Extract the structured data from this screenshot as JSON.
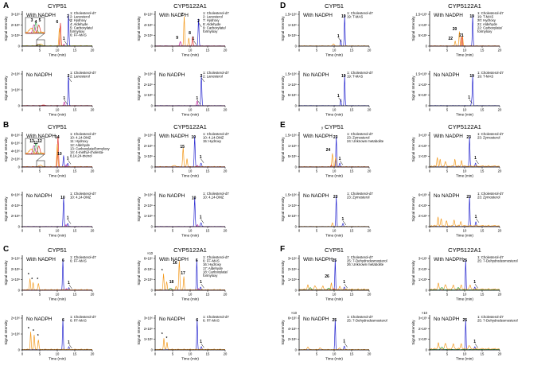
{
  "colors": {
    "blue": "#2a2ad0",
    "orange": "#f39a1e",
    "red": "#e0312d",
    "magenta": "#c0219a",
    "green": "#2fa84a",
    "gray": "#7a7a7a"
  },
  "labels": {
    "with": "With NADPH",
    "no": "No NADPH",
    "ylab": "Signal Intensity",
    "xlab": "Time (min)",
    "x_ticks": [
      "0",
      "5",
      "10",
      "15",
      "20"
    ],
    "x_ticks_d": [
      "0",
      "5",
      "10",
      "15",
      "20"
    ]
  },
  "panel_letters": [
    "A",
    "B",
    "C",
    "D",
    "E",
    "F"
  ],
  "titles": {
    "cyp51": "CYP51",
    "cyp5122": "CYP5122A1"
  },
  "stray": {
    "e_y": "y"
  },
  "subplots": [
    {
      "id": "A-cyp51-with",
      "panel": "A",
      "enzyme": "cyp51",
      "cond": "with",
      "yticks": [
        "0",
        "1×10⁶",
        "2×10⁶",
        "3×10⁶"
      ],
      "legend": [
        "1: Cholesterol-d7",
        "2: Lanosterol",
        "3: Hydroxy",
        "4: Aldehyde",
        "5: Carboxylate/",
        "    formyloxy",
        "6: FF-MAS"
      ],
      "peaks": [
        "1",
        "2",
        "6"
      ],
      "inset": {
        "peaks": [
          "3",
          "4",
          "5"
        ]
      }
    },
    {
      "id": "A-cyp5122-with",
      "panel": "A",
      "enzyme": "cyp5122",
      "cond": "with",
      "yticks": [
        "0",
        "2×10⁶",
        "4×10⁶",
        "6×10⁶"
      ],
      "legend": [
        "1: Cholesterol-d7",
        "2: Lanosterol",
        "7: Hydroxy",
        "8: Aldehyde",
        "9: Carboxylate/",
        "    formyloxy"
      ],
      "peaks": [
        "7",
        "8",
        "9",
        "1",
        "2"
      ]
    },
    {
      "id": "A-cyp51-no",
      "panel": "A",
      "enzyme": "cyp51",
      "cond": "no",
      "yticks": [
        "0",
        "1×10⁶",
        "2×10⁶"
      ],
      "legend": [
        "1: Cholesterol-d7",
        "2: Lanosterol"
      ],
      "peaks": [
        "1",
        "2"
      ]
    },
    {
      "id": "A-cyp5122-no",
      "panel": "A",
      "enzyme": "cyp5122",
      "cond": "no",
      "yticks": [
        "0",
        "1×10⁶",
        "2×10⁶",
        "3×10⁶"
      ],
      "legend": [
        "1: Cholesterol-d7",
        "2: Lanosterol"
      ],
      "peaks": [
        "1",
        "2"
      ]
    },
    {
      "id": "B-cyp51-with",
      "panel": "B",
      "enzyme": "cyp51",
      "cond": "with",
      "yticks": [
        "0",
        "2×10⁶",
        "4×10⁶",
        "6×10⁶",
        "8×10⁶"
      ],
      "legend": [
        "1: Cholesterol-d7",
        "10: 4,14-DMZ",
        "11: Hydroxy",
        "12: Aldehyde",
        "13: Carboxylate/formyloxy",
        "14: 4-methyl-cholesta-",
        "    8,14,24-trienol"
      ],
      "peaks": [
        "14",
        "10",
        "1"
      ],
      "inset": {
        "peaks": [
          "13",
          "11",
          "12"
        ]
      }
    },
    {
      "id": "B-cyp5122-with",
      "panel": "B",
      "enzyme": "cyp5122",
      "cond": "with",
      "yticks": [
        "0",
        "1×10⁶",
        "2×10⁶",
        "3×10⁶"
      ],
      "legend": [
        "1: Cholesterol-d7",
        "10: 4,14-DMZ",
        "15: Hydroxy"
      ],
      "peaks": [
        "15",
        "10",
        "1"
      ]
    },
    {
      "id": "B-cyp51-no",
      "panel": "B",
      "enzyme": "cyp51",
      "cond": "no",
      "yticks": [
        "0",
        "2×10⁶",
        "4×10⁶",
        "6×10⁶"
      ],
      "legend": [
        "1: Cholesterol-d7",
        "10: 4,14-DMZ"
      ],
      "peaks": [
        "10",
        "1"
      ]
    },
    {
      "id": "B-cyp5122-no",
      "panel": "B",
      "enzyme": "cyp5122",
      "cond": "no",
      "yticks": [
        "0",
        "1×10⁶",
        "2×10⁶",
        "3×10⁶"
      ],
      "legend": [
        "1: Cholesterol-d7",
        "10: 4,14-DMZ"
      ],
      "peaks": [
        "10",
        "1"
      ]
    },
    {
      "id": "C-cyp51-with",
      "panel": "C",
      "enzyme": "cyp51",
      "cond": "with",
      "yticks": [
        "0",
        "1×10⁶",
        "2×10⁶",
        "3×10⁶"
      ],
      "legend": [
        "1: Cholesterol-d7",
        "6: FF-MAS"
      ],
      "peaks": [
        "*",
        "*",
        "*",
        "6",
        "1"
      ]
    },
    {
      "id": "C-cyp5122-with",
      "panel": "C",
      "enzyme": "cyp5122",
      "cond": "with",
      "yticks": [
        "0",
        "2×10⁵",
        "4×10⁵",
        "6×10⁵"
      ],
      "top_tick": "×10",
      "legend": [
        "1: Cholesterol-d7",
        "6: FF-MAS",
        "16: Hydroxy",
        "17: Aldehyde",
        "18: Carboxylate/",
        "    formyloxy"
      ],
      "peaks": [
        "*",
        "16",
        "17",
        "18",
        "6",
        "1"
      ]
    },
    {
      "id": "C-cyp51-no",
      "panel": "C",
      "enzyme": "cyp51",
      "cond": "no",
      "yticks": [
        "0",
        "1×10⁶",
        "2×10⁶"
      ],
      "legend": [
        "1: Cholesterol-d7",
        "6: FF-MAS"
      ],
      "peaks": [
        "*",
        "*",
        "*",
        "6",
        "1"
      ]
    },
    {
      "id": "C-cyp5122-no",
      "panel": "C",
      "enzyme": "cyp5122",
      "cond": "no",
      "yticks": [
        "0",
        "1×10⁶",
        "2×10⁶",
        "3×10⁶"
      ],
      "legend": [
        "1: Cholesterol-d7",
        "6: FF-MAS"
      ],
      "peaks": [
        "*",
        "*",
        "6",
        "1"
      ]
    },
    {
      "id": "D-cyp51-with",
      "panel": "D",
      "enzyme": "cyp51",
      "cond": "with",
      "yticks": [
        "0",
        "5×10⁵",
        "1×10⁶",
        "1.5×10⁶"
      ],
      "legend": [
        "1: Cholesterol-d7",
        "19: T-MAS"
      ],
      "peaks": [
        "19",
        "1"
      ]
    },
    {
      "id": "D-cyp5122-with",
      "panel": "D",
      "enzyme": "cyp5122",
      "cond": "with",
      "yticks": [
        "0",
        "5×10⁵",
        "1×10⁶",
        "1.5×10⁶"
      ],
      "legend": [
        "1: Cholesterol-d7",
        "19: T-MAS",
        "20: Hydroxy",
        "21: Aldehyde",
        "22: Carboxylate/",
        "    formyloxy"
      ],
      "peaks": [
        "20",
        "22",
        "21",
        "19"
      ]
    },
    {
      "id": "D-cyp51-no",
      "panel": "D",
      "enzyme": "cyp51",
      "cond": "no",
      "yticks": [
        "0",
        "5×10⁵",
        "1×10⁶",
        "1.5×10⁶"
      ],
      "legend": [
        "1: Cholesterol-d7",
        "19: T-MAS"
      ],
      "peaks": [
        "19",
        "1"
      ]
    },
    {
      "id": "D-cyp5122-no",
      "panel": "D",
      "enzyme": "cyp5122",
      "cond": "no",
      "yticks": [
        "0",
        "5×10⁵",
        "1×10⁶",
        "1.5×10⁶"
      ],
      "legend": [
        "1: Cholesterol-d7",
        "19: T-MAS"
      ],
      "peaks": [
        "19",
        "1"
      ]
    },
    {
      "id": "E-cyp51-with",
      "panel": "E",
      "enzyme": "cyp51",
      "cond": "with",
      "yticks": [
        "0",
        "5×10⁵",
        "1×10⁶",
        "1.5×10⁶"
      ],
      "legend": [
        "1: Cholesterol-d7",
        "23: Zymosterol",
        "24: Unknown metabolite"
      ],
      "peaks": [
        "24",
        "23",
        "1"
      ]
    },
    {
      "id": "E-cyp5122-with",
      "panel": "E",
      "enzyme": "cyp5122",
      "cond": "with",
      "yticks": [
        "0",
        "1×10⁶",
        "2×10⁶",
        "3×10⁶"
      ],
      "legend": [
        "1: Cholesterol-d7",
        "23: Zymosterol"
      ],
      "peaks": [
        "23",
        "1"
      ]
    },
    {
      "id": "E-cyp51-no",
      "panel": "E",
      "enzyme": "cyp51",
      "cond": "no",
      "yticks": [
        "0",
        "5×10⁵",
        "1×10⁶",
        "1.5×10⁶"
      ],
      "legend": [
        "1: Cholesterol-d7",
        "23: Zymosterol"
      ],
      "peaks": [
        "23",
        "1"
      ]
    },
    {
      "id": "E-cyp5122-no",
      "panel": "E",
      "enzyme": "cyp5122",
      "cond": "no",
      "yticks": [
        "0",
        "2×10⁶",
        "4×10⁶",
        "6×10⁶"
      ],
      "legend": [
        "1: Cholesterol-d7",
        "23: Zymosterol"
      ],
      "peaks": [
        "23",
        "1"
      ]
    },
    {
      "id": "F-cyp51-with",
      "panel": "F",
      "enzyme": "cyp51",
      "cond": "with",
      "yticks": [
        "0",
        "1×10⁶",
        "2×10⁶",
        "3×10⁶"
      ],
      "legend": [
        "1: Cholesterol-d7",
        "25: 7-Dehydrodesmosterol",
        "26: Unknown metabolite"
      ],
      "peaks": [
        "26",
        "25",
        "1"
      ]
    },
    {
      "id": "F-cyp5122-with",
      "panel": "F",
      "enzyme": "cyp5122",
      "cond": "with",
      "yticks": [
        "0",
        "1×10⁶",
        "2×10⁶",
        "3×10⁶"
      ],
      "legend": [
        "1: Cholesterol-d7",
        "25: 7-Dehydrodesmosterol"
      ],
      "peaks": [
        "25",
        "1"
      ]
    },
    {
      "id": "F-cyp51-no",
      "panel": "F",
      "enzyme": "cyp51",
      "cond": "no",
      "yticks": [
        "0",
        "2×10⁵",
        "4×10⁵",
        "6×10⁵"
      ],
      "top_tick": "×10",
      "legend": [
        "1: Cholesterol-d7",
        "25: 7-Dehydrodesmosterol"
      ],
      "peaks": [
        "25",
        "1"
      ]
    },
    {
      "id": "F-cyp5122-no",
      "panel": "F",
      "enzyme": "cyp5122",
      "cond": "no",
      "yticks": [
        "0",
        "1×10⁶",
        "2×10⁶",
        "3×10⁶"
      ],
      "top_tick": "×10",
      "legend": [
        "1: Cholesterol-d7",
        "25: 7-Dehydrodesmosterol"
      ],
      "peaks": [
        "25",
        "1"
      ]
    }
  ]
}
